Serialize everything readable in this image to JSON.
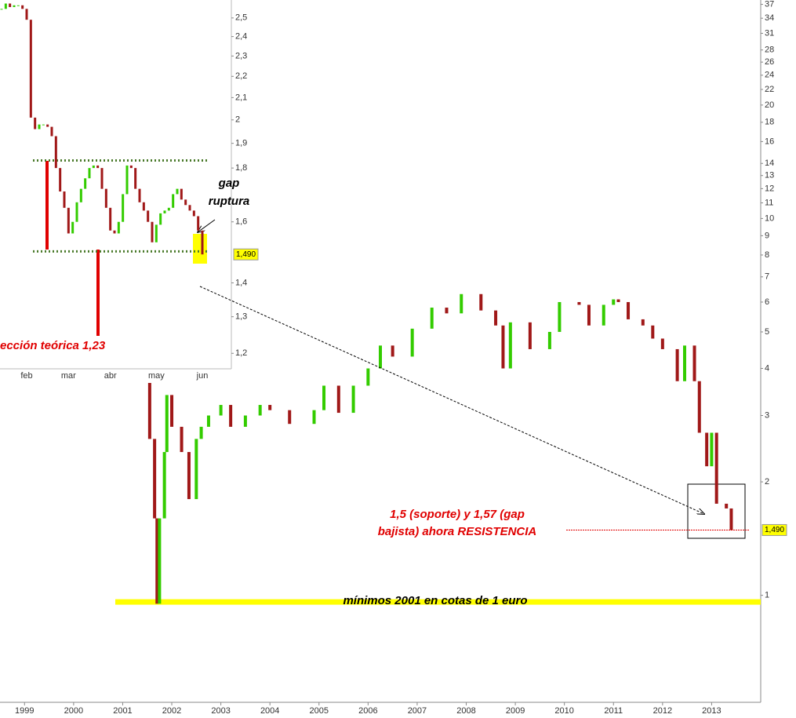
{
  "chart_data": [
    {
      "type": "candlestick",
      "x": [
        2001.45,
        2001.55,
        2001.65,
        2001.7,
        2001.75,
        2001.85,
        2001.9,
        2002.0,
        2002.2,
        2002.35,
        2002.5,
        2002.6,
        2002.75,
        2003.0,
        2003.2,
        2003.5,
        2003.8,
        2004.0,
        2004.4,
        2004.9,
        2005.1,
        2005.4,
        2005.7,
        2006.0,
        2006.25,
        2006.5,
        2006.9,
        2007.3,
        2007.6,
        2007.9,
        2008.3,
        2008.6,
        2008.75,
        2008.9,
        2009.3,
        2009.7,
        2009.9,
        2010.3,
        2010.5,
        2010.8,
        2011.0,
        2011.1,
        2011.3,
        2011.6,
        2011.8,
        2012.0,
        2012.3,
        2012.45,
        2012.65,
        2012.75,
        2012.9,
        2013.0,
        2013.1,
        2013.3,
        2013.4
      ],
      "values": [
        3.7,
        2.6,
        1.6,
        0.95,
        1.6,
        2.4,
        3.4,
        2.8,
        2.4,
        1.8,
        2.6,
        2.8,
        3.0,
        3.2,
        2.8,
        3.0,
        3.2,
        3.1,
        2.85,
        3.1,
        3.6,
        3.05,
        3.6,
        4.0,
        4.6,
        4.3,
        5.1,
        5.8,
        5.6,
        6.3,
        5.7,
        5.2,
        4.0,
        5.3,
        4.5,
        5.0,
        6.0,
        5.9,
        5.2,
        5.9,
        6.1,
        6.0,
        5.4,
        5.2,
        4.8,
        4.5,
        3.7,
        4.6,
        3.7,
        2.7,
        2.2,
        2.7,
        1.75,
        1.7,
        1.49
      ],
      "xlim": [
        1998.5,
        2014.0
      ],
      "xticks": [
        1999,
        2000,
        2001,
        2002,
        2003,
        2004,
        2005,
        2006,
        2007,
        2008,
        2009,
        2010,
        2011,
        2012,
        2013
      ],
      "ylim": [
        0.52,
        38
      ],
      "yticks": [
        37,
        34,
        31,
        28,
        26,
        24,
        22,
        20,
        18,
        16,
        14,
        13,
        12,
        11,
        10,
        9,
        8,
        7,
        6,
        5,
        4,
        3,
        2,
        1
      ],
      "log_scale": true,
      "up_color": "#33cc00",
      "down_color": "#a01818",
      "last_value": {
        "value": 1.49,
        "label": "1,490"
      },
      "floor_line": 0.96,
      "annotations": [
        "1,5 (soporte) y 1,57 (gap",
        "bajista) ahora RESISTENCIA",
        "mínimos 2001 en cotas de 1 euro"
      ]
    },
    {
      "type": "candlestick",
      "categories": [
        null,
        null,
        null,
        null,
        null,
        null,
        "feb",
        null,
        null,
        null,
        null,
        null,
        null,
        null,
        null,
        null,
        "mar",
        null,
        null,
        null,
        null,
        null,
        null,
        null,
        null,
        null,
        "abr",
        null,
        null,
        null,
        null,
        null,
        null,
        null,
        null,
        null,
        null,
        "may",
        null,
        null,
        null,
        null,
        null,
        null,
        null,
        null,
        null,
        null,
        "jun"
      ],
      "values": [
        2.55,
        2.58,
        2.56,
        2.57,
        2.57,
        2.55,
        2.49,
        2.01,
        1.96,
        1.98,
        1.98,
        1.97,
        1.93,
        1.8,
        1.71,
        1.65,
        1.56,
        1.6,
        1.67,
        1.72,
        1.76,
        1.8,
        1.81,
        1.8,
        1.72,
        1.65,
        1.57,
        1.56,
        1.6,
        1.7,
        1.81,
        1.8,
        1.72,
        1.67,
        1.64,
        1.6,
        1.53,
        1.59,
        1.63,
        1.64,
        1.65,
        1.7,
        1.72,
        1.68,
        1.66,
        1.64,
        1.62,
        1.57,
        1.49
      ],
      "ylim": [
        1.16,
        2.6
      ],
      "yticks": [
        {
          "value": 2.5,
          "label": "2,5"
        },
        {
          "value": 2.4,
          "label": "2,4"
        },
        {
          "value": 2.3,
          "label": "2,3"
        },
        {
          "value": 2.2,
          "label": "2,2"
        },
        {
          "value": 2.1,
          "label": "2,1"
        },
        2,
        {
          "value": 1.9,
          "label": "1,9"
        },
        {
          "value": 1.8,
          "label": "1,8"
        },
        {
          "value": 1.6,
          "label": "1,6"
        },
        {
          "value": 1.4,
          "label": "1,4"
        },
        {
          "value": 1.3,
          "label": "1,3"
        },
        {
          "value": 1.2,
          "label": "1,2"
        }
      ],
      "log_scale": true,
      "up_color": "#33cc00",
      "down_color": "#a01818",
      "levels": [
        1.83,
        1.5
      ],
      "last_value": {
        "value": 1.49,
        "label": "1,490"
      },
      "annotations": [
        "gap",
        "ruptura",
        "ección teórica 1,23"
      ]
    }
  ]
}
